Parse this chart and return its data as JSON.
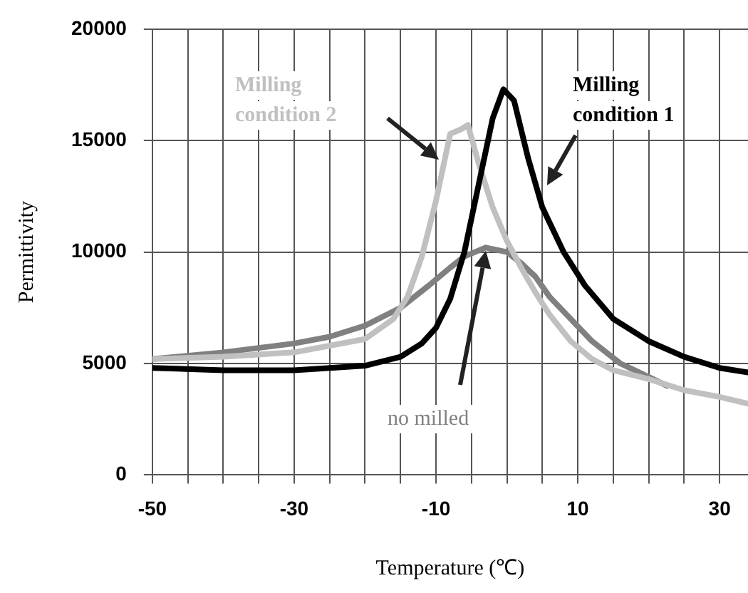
{
  "chart_data": {
    "type": "line",
    "xlabel": "Temperature (℃)",
    "ylabel": "Permittivity",
    "xlim": [
      -50,
      34
    ],
    "xticks": [
      -50,
      {
        "value": -45,
        "label": null
      },
      {
        "value": -40,
        "label": null
      },
      {
        "value": -35,
        "label": null
      },
      -30,
      {
        "value": -25,
        "label": null
      },
      {
        "value": -20,
        "label": null
      },
      {
        "value": -15,
        "label": null
      },
      -10,
      {
        "value": -5,
        "label": null
      },
      {
        "value": 0,
        "label": null
      },
      {
        "value": 5,
        "label": null
      },
      10,
      {
        "value": 15,
        "label": null
      },
      {
        "value": 20,
        "label": null
      },
      {
        "value": 25,
        "label": null
      },
      30
    ],
    "ylim": [
      0,
      20000
    ],
    "yticks": [
      0,
      5000,
      10000,
      15000,
      20000
    ],
    "grid": true,
    "legend": false,
    "marker": "none",
    "line_style": "solid",
    "series": [
      {
        "name": "Milling condition 1",
        "color": "#000000",
        "x": [
          -50,
          -40,
          -30,
          -20,
          -15,
          -12,
          -10,
          -8,
          -6,
          -4,
          -2,
          -0.5,
          1,
          3,
          5,
          8,
          11,
          15,
          20,
          25,
          30,
          34
        ],
        "values": [
          4800,
          4700,
          4700,
          4900,
          5300,
          5900,
          6600,
          7900,
          10000,
          13000,
          16000,
          17300,
          16800,
          14200,
          12000,
          10000,
          8500,
          7000,
          6000,
          5300,
          4800,
          4600
        ]
      },
      {
        "name": "Milling condition 2",
        "color": "#c0c0c0",
        "x": [
          -50,
          -40,
          -30,
          -20,
          -16,
          -14,
          -12,
          -10,
          -8,
          -6.5,
          -5.5,
          -4,
          -2,
          0,
          2,
          4,
          6,
          9,
          12,
          15,
          20,
          25,
          30,
          34
        ],
        "values": [
          5200,
          5300,
          5500,
          6100,
          7000,
          8000,
          9800,
          12300,
          15300,
          15500,
          15700,
          14000,
          12000,
          10500,
          9300,
          8200,
          7200,
          6000,
          5200,
          4700,
          4300,
          3800,
          3500,
          3200
        ]
      },
      {
        "name": "no milled",
        "color": "#808080",
        "x": [
          -50,
          -40,
          -35,
          -30,
          -25,
          -20,
          -15,
          -11,
          -8,
          -6,
          -3,
          0,
          2,
          4,
          6,
          9,
          12,
          14,
          16,
          18,
          20,
          22.6
        ],
        "values": [
          5200,
          5500,
          5700,
          5900,
          6200,
          6700,
          7500,
          8500,
          9300,
          9800,
          10200,
          10000,
          9500,
          8900,
          8000,
          7000,
          6000,
          5500,
          5000,
          4700,
          4400,
          4000
        ]
      }
    ]
  }
}
